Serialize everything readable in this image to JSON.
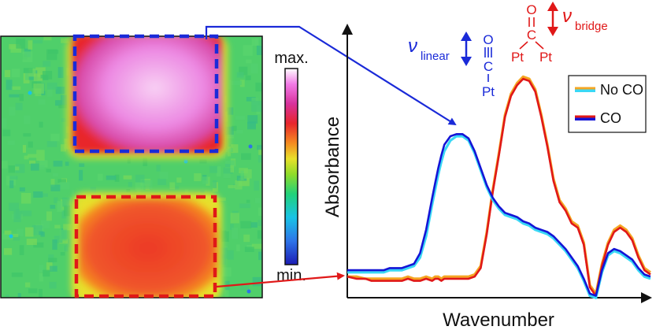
{
  "chart_data": [
    {
      "type": "heatmap",
      "colorbar": {
        "max_label": "max.",
        "min_label": "min."
      },
      "regions": [
        {
          "outline_color": "#1a2ad8",
          "level": "max"
        },
        {
          "outline_color": "#e02020",
          "level": "high"
        }
      ],
      "colormap": [
        "#1c1cb4",
        "#2e74e8",
        "#19c3e6",
        "#22d27a",
        "#8fdc2a",
        "#e8e02a",
        "#f58a20",
        "#e8262c",
        "#d8329c",
        "#f27ae6",
        "#ffffff"
      ]
    },
    {
      "type": "line",
      "xlabel": "Wavenumber",
      "ylabel": "Absorbance",
      "legend_position": "top-right",
      "x": [
        0,
        3,
        6,
        8,
        10,
        12,
        14,
        16,
        18,
        20,
        22,
        24,
        26,
        28,
        29,
        30,
        31,
        32,
        34,
        36,
        38,
        40,
        42,
        44,
        46,
        48,
        50,
        52,
        54,
        56,
        58,
        60,
        62,
        64,
        66,
        68,
        70,
        72,
        74,
        76,
        78,
        80,
        82,
        84,
        86,
        88,
        90,
        92,
        94,
        96,
        98,
        100
      ],
      "series": [
        {
          "name": "No CO",
          "color": "#f5a623",
          "values": [
            0.04,
            0.04,
            0.03,
            0.03,
            0.03,
            0.03,
            0.03,
            0.03,
            0.03,
            0.04,
            0.03,
            0.03,
            0.04,
            0.03,
            0.04,
            0.04,
            0.03,
            0.04,
            0.04,
            0.04,
            0.04,
            0.04,
            0.05,
            0.09,
            0.25,
            0.45,
            0.62,
            0.8,
            0.9,
            0.95,
            0.98,
            0.97,
            0.92,
            0.8,
            0.66,
            0.5,
            0.4,
            0.36,
            0.3,
            0.28,
            0.2,
            0.0,
            -0.04,
            0.1,
            0.2,
            0.26,
            0.28,
            0.26,
            0.22,
            0.14,
            0.08,
            0.06
          ]
        },
        {
          "name": "CO",
          "color": "#e01818",
          "values": [
            0.04,
            0.03,
            0.03,
            0.02,
            0.02,
            0.02,
            0.02,
            0.02,
            0.02,
            0.03,
            0.02,
            0.02,
            0.03,
            0.02,
            0.03,
            0.03,
            0.02,
            0.03,
            0.03,
            0.03,
            0.03,
            0.03,
            0.04,
            0.08,
            0.24,
            0.44,
            0.61,
            0.79,
            0.89,
            0.94,
            0.97,
            0.96,
            0.91,
            0.79,
            0.65,
            0.49,
            0.39,
            0.35,
            0.29,
            0.27,
            0.19,
            -0.01,
            -0.05,
            0.09,
            0.19,
            0.25,
            0.27,
            0.25,
            0.21,
            0.13,
            0.07,
            0.05
          ]
        },
        {
          "name": "No CO",
          "color": "#3ad8f5",
          "values": [
            0.06,
            0.06,
            0.06,
            0.06,
            0.06,
            0.06,
            0.07,
            0.07,
            0.07,
            0.08,
            0.09,
            0.13,
            0.23,
            0.38,
            0.45,
            0.52,
            0.58,
            0.63,
            0.68,
            0.7,
            0.7,
            0.68,
            0.62,
            0.54,
            0.46,
            0.4,
            0.36,
            0.33,
            0.32,
            0.31,
            0.29,
            0.28,
            0.26,
            0.25,
            0.24,
            0.22,
            0.19,
            0.16,
            0.12,
            0.08,
            0.02,
            -0.05,
            -0.06,
            0.06,
            0.14,
            0.16,
            0.15,
            0.13,
            0.11,
            0.07,
            0.04,
            0.03
          ]
        },
        {
          "name": "",
          "color": "#1414d6",
          "values": [
            0.07,
            0.07,
            0.07,
            0.07,
            0.07,
            0.07,
            0.08,
            0.08,
            0.08,
            0.09,
            0.1,
            0.15,
            0.26,
            0.41,
            0.48,
            0.55,
            0.61,
            0.66,
            0.7,
            0.71,
            0.71,
            0.69,
            0.63,
            0.55,
            0.47,
            0.41,
            0.37,
            0.34,
            0.33,
            0.32,
            0.3,
            0.29,
            0.27,
            0.26,
            0.25,
            0.23,
            0.2,
            0.17,
            0.13,
            0.09,
            0.03,
            -0.04,
            -0.05,
            0.07,
            0.15,
            0.17,
            0.16,
            0.14,
            0.12,
            0.08,
            0.05,
            0.04
          ]
        }
      ],
      "annotations": {
        "linear_label": "ν",
        "linear_sub": "linear",
        "bridge_label": "ν",
        "bridge_sub": "bridge",
        "o_atom": "O",
        "c_atom": "C",
        "pt_atom": "Pt",
        "linear_color": "#1a2ad8",
        "bridge_color": "#e01818"
      }
    }
  ],
  "legend": [
    {
      "label": "No CO",
      "color": "#f5a623",
      "edge": "#3ad8f5"
    },
    {
      "label": "CO",
      "color": "#e01818",
      "edge": "#1414d6"
    }
  ]
}
